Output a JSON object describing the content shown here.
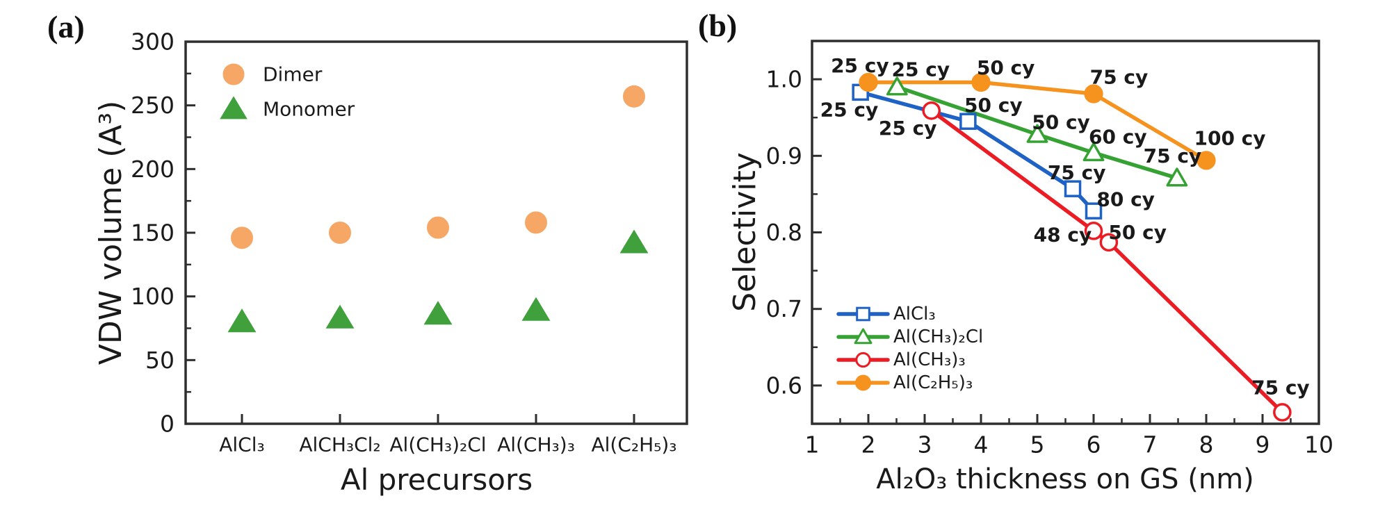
{
  "figure": {
    "background": "#ffffff",
    "panel_a": {
      "label": "(a)",
      "y_axis_title": "VDW volume (A³)",
      "x_axis_title": "Al precursors",
      "legend": [
        {
          "label": "Dimer",
          "marker": "circle-filled",
          "color": "#F6A766"
        },
        {
          "label": "Monomer",
          "marker": "triangle-filled",
          "color": "#3FA03C"
        }
      ]
    },
    "panel_b": {
      "label": "(b)",
      "y_axis_title": "Selectivity",
      "x_axis_title": "Al₂O₃ thickness on GS (nm)",
      "legend": [
        {
          "label": "AlCl₃",
          "marker": "square-open",
          "color": "#1E62C6"
        },
        {
          "label": "Al(CH₃)₂Cl",
          "marker": "triangle-open",
          "color": "#35A233"
        },
        {
          "label": "Al(CH₃)₃",
          "marker": "circle-open",
          "color": "#EB1C23"
        },
        {
          "label": "Al(C₂H₅)₃",
          "marker": "circle-filled",
          "color": "#F6921E"
        }
      ]
    }
  },
  "chart_data": [
    {
      "panel": "a",
      "type": "scatter",
      "title": "",
      "xlabel": "Al precursors",
      "ylabel": "VDW volume (A³)",
      "categories": [
        "AlCl₃",
        "AlCH₃Cl₂",
        "Al(CH₃)₂Cl",
        "Al(CH₃)₃",
        "Al(C₂H₅)₃"
      ],
      "ylim": [
        0,
        300
      ],
      "ytick_major": 50,
      "ytick_minor": 25,
      "grid": false,
      "legend_position": "top-left",
      "series": [
        {
          "name": "Dimer",
          "marker": "circle-filled",
          "color": "#F6A766",
          "values": [
            146,
            150,
            154,
            158,
            257
          ]
        },
        {
          "name": "Monomer",
          "marker": "triangle-filled",
          "color": "#3FA03C",
          "values": [
            80,
            83,
            86,
            89,
            142
          ]
        }
      ]
    },
    {
      "panel": "b",
      "type": "line",
      "title": "",
      "xlabel": "Al₂O₃ thickness on GS (nm)",
      "ylabel": "Selectivity",
      "xlim": [
        1,
        10
      ],
      "xtick_major": 1,
      "xtick_minor": 0.5,
      "ylim": [
        0.55,
        1.05
      ],
      "ytick_major": 0.1,
      "ytick_minor": 0.05,
      "ytick_labels": [
        "0.6",
        "0.7",
        "0.8",
        "0.9",
        "1.0"
      ],
      "grid": false,
      "legend_position": "bottom-left",
      "series": [
        {
          "name": "AlCl₃",
          "color": "#1E62C6",
          "marker": "square-open",
          "points": [
            {
              "x": 1.86,
              "y": 0.983,
              "cycles": "25 cy"
            },
            {
              "x": 3.77,
              "y": 0.945,
              "cycles": "50 cy"
            },
            {
              "x": 5.63,
              "y": 0.857,
              "cycles": "75 cy"
            },
            {
              "x": 6.0,
              "y": 0.828,
              "cycles": "80 cy"
            }
          ]
        },
        {
          "name": "Al(CH₃)₂Cl",
          "color": "#35A233",
          "marker": "triangle-open",
          "points": [
            {
              "x": 2.51,
              "y": 0.99,
              "cycles": "25 cy"
            },
            {
              "x": 5.0,
              "y": 0.928,
              "cycles": "50 cy"
            },
            {
              "x": 6.0,
              "y": 0.904,
              "cycles": "60 cy"
            },
            {
              "x": 7.48,
              "y": 0.871,
              "cycles": "75 cy"
            }
          ]
        },
        {
          "name": "Al(CH₃)₃",
          "color": "#EB1C23",
          "marker": "circle-open",
          "points": [
            {
              "x": 3.12,
              "y": 0.959,
              "cycles": "25 cy"
            },
            {
              "x": 6.0,
              "y": 0.802,
              "cycles": "48 cy"
            },
            {
              "x": 6.27,
              "y": 0.787,
              "cycles": "50 cy"
            },
            {
              "x": 9.35,
              "y": 0.565,
              "cycles": "75 cy"
            }
          ]
        },
        {
          "name": "Al(C₂H₅)₃",
          "color": "#F6921E",
          "marker": "circle-filled",
          "points": [
            {
              "x": 2.0,
              "y": 0.996,
              "cycles": "25 cy"
            },
            {
              "x": 4.0,
              "y": 0.996,
              "cycles": "50 cy"
            },
            {
              "x": 6.0,
              "y": 0.981,
              "cycles": "75 cy"
            },
            {
              "x": 8.0,
              "y": 0.894,
              "cycles": "100 cy"
            }
          ]
        }
      ],
      "annotations": [
        {
          "text": "25 cy",
          "series": 3,
          "x": 1.85,
          "y": 1.018
        },
        {
          "text": "25 cy",
          "series": 1,
          "x": 2.93,
          "y": 1.013
        },
        {
          "text": "50 cy",
          "series": 3,
          "x": 4.44,
          "y": 1.015
        },
        {
          "text": "75 cy",
          "series": 3,
          "x": 6.45,
          "y": 1.003
        },
        {
          "text": "100 cy",
          "series": 3,
          "x": 8.42,
          "y": 0.923
        },
        {
          "text": "25 cy",
          "series": 0,
          "x": 1.66,
          "y": 0.96
        },
        {
          "text": "25 cy",
          "series": 2,
          "x": 2.7,
          "y": 0.936
        },
        {
          "text": "50 cy",
          "series": 0,
          "x": 4.22,
          "y": 0.966
        },
        {
          "text": "50 cy",
          "series": 1,
          "x": 5.42,
          "y": 0.944
        },
        {
          "text": "60 cy",
          "series": 1,
          "x": 6.43,
          "y": 0.925
        },
        {
          "text": "75 cy",
          "series": 1,
          "x": 7.4,
          "y": 0.9
        },
        {
          "text": "75 cy",
          "series": 0,
          "x": 5.7,
          "y": 0.878
        },
        {
          "text": "80 cy",
          "series": 0,
          "x": 6.57,
          "y": 0.843
        },
        {
          "text": "48 cy",
          "series": 2,
          "x": 5.45,
          "y": 0.797
        },
        {
          "text": "50 cy",
          "series": 2,
          "x": 6.78,
          "y": 0.8
        },
        {
          "text": "75 cy",
          "series": 2,
          "x": 9.32,
          "y": 0.597
        }
      ]
    }
  ]
}
